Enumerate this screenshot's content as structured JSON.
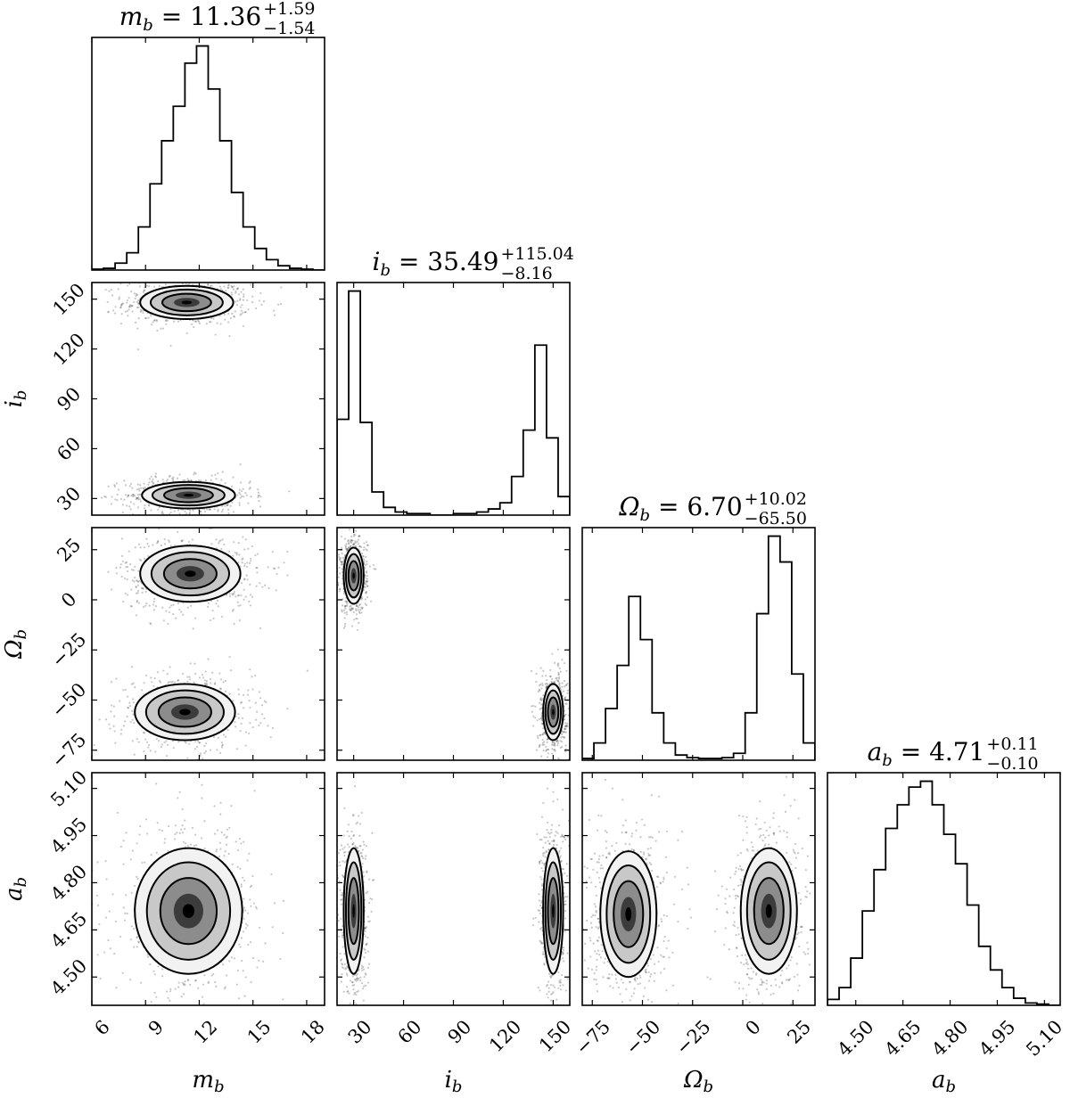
{
  "chart_data": {
    "type": "corner",
    "parameters": [
      {
        "key": "m",
        "symbol": "m",
        "subscript": "b",
        "range": [
          6,
          19
        ],
        "ticks": [
          "6",
          "9",
          "12",
          "15",
          "18"
        ]
      },
      {
        "key": "i",
        "symbol": "i",
        "subscript": "b",
        "range": [
          20,
          160
        ],
        "ticks": [
          "30",
          "60",
          "90",
          "120",
          "150"
        ]
      },
      {
        "key": "Omega",
        "symbol": "Ω",
        "subscript": "b",
        "range": [
          -80,
          36
        ],
        "ticks": [
          "−75",
          "−50",
          "−25",
          "0",
          "25"
        ]
      },
      {
        "key": "a",
        "symbol": "a",
        "subscript": "b",
        "range": [
          4.41,
          5.15
        ],
        "ticks": [
          "4.50",
          "4.65",
          "4.80",
          "4.95",
          "5.10"
        ]
      }
    ],
    "titles": [
      {
        "lhs": "m",
        "sub": "b",
        "value": "11.36",
        "plus": "+1.59",
        "minus": "−1.54"
      },
      {
        "lhs": "i",
        "sub": "b",
        "value": "35.49",
        "plus": "+115.04",
        "minus": "−8.16"
      },
      {
        "lhs": "Ω",
        "sub": "b",
        "value": "6.70",
        "plus": "+10.02",
        "minus": "−65.50"
      },
      {
        "lhs": "a",
        "sub": "b",
        "value": "4.71",
        "plus": "+0.11",
        "minus": "−0.10"
      }
    ],
    "histograms": [
      {
        "param": "m",
        "bin_edges": [
          6.0,
          6.65,
          7.3,
          7.95,
          8.6,
          9.25,
          9.9,
          10.55,
          11.2,
          11.85,
          12.5,
          13.15,
          13.8,
          14.45,
          15.1,
          15.75,
          16.4,
          17.05,
          17.7,
          18.35,
          19.0
        ],
        "counts": [
          1,
          2,
          8,
          20,
          50,
          100,
          150,
          190,
          240,
          260,
          210,
          150,
          90,
          50,
          25,
          12,
          5,
          2,
          1,
          0
        ]
      },
      {
        "param": "i",
        "bin_edges": [
          20,
          27,
          34,
          41,
          48,
          55,
          62,
          69,
          76,
          83,
          90,
          97,
          104,
          111,
          118,
          125,
          132,
          139,
          146,
          153,
          160
        ],
        "counts": [
          62,
          145,
          60,
          15,
          5,
          2,
          1,
          1,
          0,
          0,
          1,
          1,
          2,
          4,
          8,
          25,
          55,
          110,
          50,
          12
        ]
      },
      {
        "param": "Omega",
        "bin_edges": [
          -80,
          -74.2,
          -68.4,
          -62.6,
          -56.8,
          -51,
          -45.2,
          -39.4,
          -33.6,
          -27.8,
          -22,
          -16.2,
          -10.4,
          -4.6,
          1.2,
          7,
          12.8,
          18.6,
          24.4,
          30.2,
          36
        ],
        "counts": [
          2,
          20,
          60,
          110,
          190,
          140,
          55,
          20,
          6,
          3,
          2,
          2,
          3,
          8,
          55,
          170,
          260,
          230,
          100,
          20
        ]
      },
      {
        "param": "a",
        "bin_edges": [
          4.41,
          4.447,
          4.484,
          4.521,
          4.558,
          4.595,
          4.632,
          4.669,
          4.706,
          4.743,
          4.78,
          4.817,
          4.854,
          4.891,
          4.928,
          4.965,
          5.002,
          5.039,
          5.076,
          5.113,
          5.15
        ],
        "counts": [
          5,
          15,
          40,
          80,
          115,
          150,
          170,
          185,
          190,
          170,
          145,
          120,
          85,
          50,
          30,
          15,
          6,
          2,
          1,
          0
        ]
      }
    ],
    "pairs": [
      {
        "x": "m",
        "y": "i",
        "modes": [
          {
            "cx": 11.3,
            "cy": 148,
            "sx": 1.3,
            "sy": 5
          },
          {
            "cx": 11.4,
            "cy": 32,
            "sx": 1.3,
            "sy": 4
          }
        ]
      },
      {
        "x": "m",
        "y": "Omega",
        "modes": [
          {
            "cx": 11.5,
            "cy": 13,
            "sx": 1.4,
            "sy": 7
          },
          {
            "cx": 11.2,
            "cy": -56,
            "sx": 1.4,
            "sy": 7
          }
        ]
      },
      {
        "x": "m",
        "y": "a",
        "modes": [
          {
            "cx": 11.4,
            "cy": 4.71,
            "sx": 1.5,
            "sy": 0.1
          }
        ]
      },
      {
        "x": "i",
        "y": "Omega",
        "modes": [
          {
            "cx": 30,
            "cy": 12,
            "sx": 3,
            "sy": 7
          },
          {
            "cx": 150,
            "cy": -56,
            "sx": 3,
            "sy": 7
          }
        ]
      },
      {
        "x": "i",
        "y": "a",
        "modes": [
          {
            "cx": 30,
            "cy": 4.71,
            "sx": 3,
            "sy": 0.1
          },
          {
            "cx": 150,
            "cy": 4.71,
            "sx": 3,
            "sy": 0.1
          }
        ]
      },
      {
        "x": "Omega",
        "y": "a",
        "modes": [
          {
            "cx": -57,
            "cy": 4.7,
            "sx": 7,
            "sy": 0.1
          },
          {
            "cx": 13,
            "cy": 4.71,
            "sx": 7,
            "sy": 0.1
          }
        ]
      }
    ]
  }
}
